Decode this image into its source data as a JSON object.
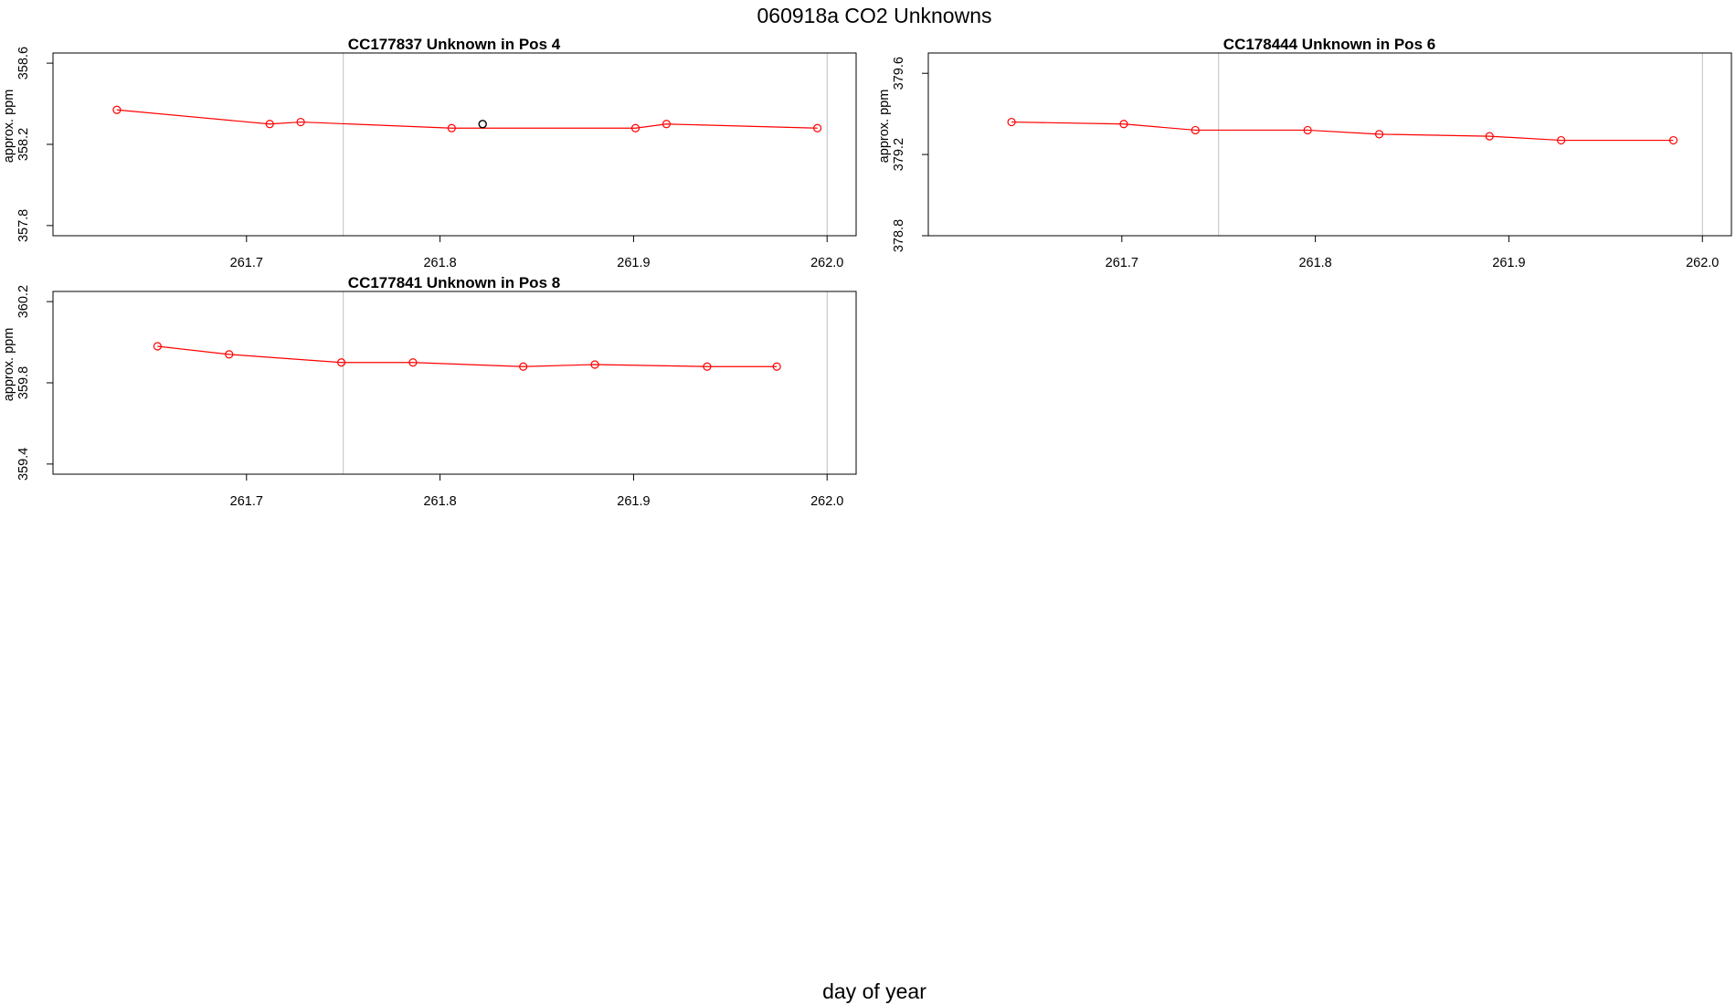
{
  "figure": {
    "title": "060918a  CO2 Unknowns",
    "xlabel": "day of year"
  },
  "colors": {
    "series": "#ff0000",
    "highlight": "#000000",
    "vline": "#bebebe",
    "axis": "#000000"
  },
  "chart_data": [
    {
      "type": "line",
      "title": "CC177837    Unknown in Pos 4",
      "ylabel": "approx. ppm",
      "xlim": [
        261.6,
        262.015
      ],
      "ylim": [
        357.75,
        358.65
      ],
      "xticks": [
        261.7,
        261.8,
        261.9,
        262.0
      ],
      "xticklabels": [
        "261.7",
        "261.8",
        "261.9",
        "262.0"
      ],
      "yticks": [
        357.8,
        358.2,
        358.6
      ],
      "yticklabels": [
        "357.8",
        "358.2",
        "358.6"
      ],
      "vlines": [
        261.75,
        262.0
      ],
      "x": [
        261.633,
        261.712,
        261.728,
        261.806,
        261.901,
        261.917,
        261.995
      ],
      "y": [
        358.37,
        358.3,
        358.31,
        358.28,
        358.28,
        358.3,
        358.28
      ],
      "highlight_points": [
        {
          "x": 261.822,
          "y": 358.3
        }
      ]
    },
    {
      "type": "line",
      "title": "CC178444    Unknown in Pos 6",
      "ylabel": "approx. ppm",
      "xlim": [
        261.6,
        262.015
      ],
      "ylim": [
        378.8,
        379.7
      ],
      "xticks": [
        261.7,
        261.8,
        261.9,
        262.0
      ],
      "xticklabels": [
        "261.7",
        "261.8",
        "261.9",
        "262.0"
      ],
      "yticks": [
        378.8,
        379.2,
        379.6
      ],
      "yticklabels": [
        "378.8",
        "379.2",
        "379.6"
      ],
      "vlines": [
        261.75,
        262.0
      ],
      "x": [
        261.643,
        261.701,
        261.738,
        261.796,
        261.833,
        261.89,
        261.927,
        261.985
      ],
      "y": [
        379.36,
        379.35,
        379.32,
        379.32,
        379.3,
        379.29,
        379.27,
        379.27
      ],
      "highlight_points": []
    },
    {
      "type": "line",
      "title": "CC177841    Unknown in Pos 8",
      "ylabel": "approx. ppm",
      "xlim": [
        261.6,
        262.015
      ],
      "ylim": [
        359.35,
        360.25
      ],
      "xticks": [
        261.7,
        261.8,
        261.9,
        262.0
      ],
      "xticklabels": [
        "261.7",
        "261.8",
        "261.9",
        "262.0"
      ],
      "yticks": [
        359.4,
        359.8,
        360.2
      ],
      "yticklabels": [
        "359.4",
        "359.8",
        "360.2"
      ],
      "vlines": [
        261.75,
        262.0
      ],
      "x": [
        261.654,
        261.691,
        261.749,
        261.786,
        261.843,
        261.88,
        261.938,
        261.974
      ],
      "y": [
        359.98,
        359.94,
        359.9,
        359.9,
        359.88,
        359.89,
        359.88,
        359.88
      ],
      "highlight_points": []
    }
  ]
}
